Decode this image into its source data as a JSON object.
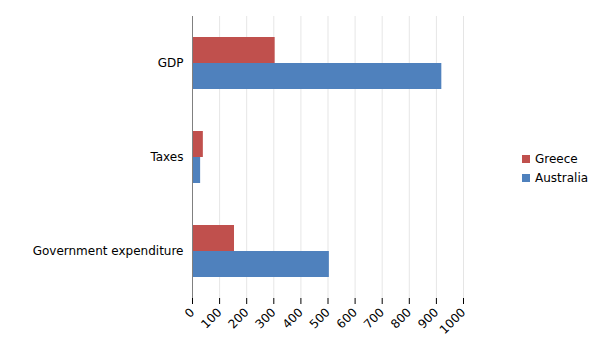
{
  "chart_data": {
    "type": "bar",
    "orientation": "horizontal",
    "categories": [
      "GDP",
      "Taxes",
      "Government expenditure"
    ],
    "series": [
      {
        "name": "Greece",
        "color": "#c0504d",
        "values": [
          305,
          40,
          155
        ]
      },
      {
        "name": "Australia",
        "color": "#4f81bd",
        "values": [
          920,
          30,
          505
        ]
      }
    ],
    "xlim": [
      0,
      1000
    ],
    "xticks": [
      0,
      100,
      200,
      300,
      400,
      500,
      600,
      700,
      800,
      900,
      1000
    ],
    "grid": true,
    "legend": "right"
  }
}
